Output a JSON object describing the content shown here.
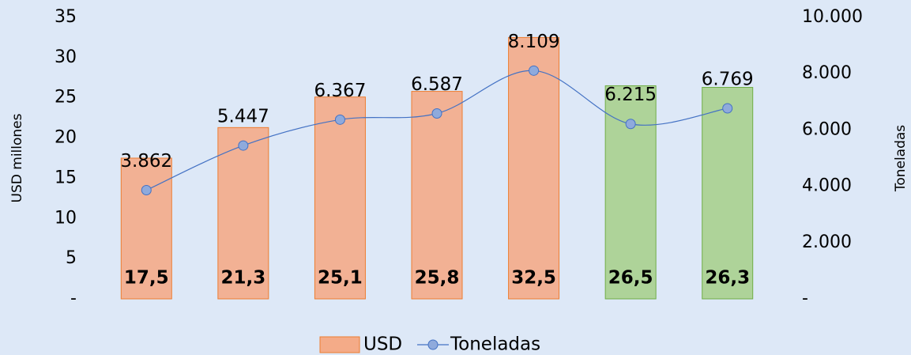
{
  "chart_data": {
    "type": "bar_line",
    "categories": [
      null,
      null,
      null,
      null,
      null,
      null,
      null
    ],
    "ylabel": "USD millones",
    "y2label": "Toneladas",
    "ylim": [
      0,
      35
    ],
    "yticks": [
      {
        "value": 0,
        "label": "-"
      },
      5,
      10,
      15,
      20,
      25,
      30,
      35
    ],
    "y2lim": [
      0,
      10000
    ],
    "y2ticks": [
      {
        "value": 0,
        "label": "-"
      },
      {
        "value": 2000,
        "label": "2.000"
      },
      {
        "value": 4000,
        "label": "4.000"
      },
      {
        "value": 6000,
        "label": "6.000"
      },
      {
        "value": 8000,
        "label": "8.000"
      },
      {
        "value": 10000,
        "label": "10.000"
      }
    ],
    "legend": "bottom",
    "series": [
      {
        "name": "USD",
        "type": "bar",
        "color": "#f4ab88",
        "colors": [
          "#f4ab88",
          "#f4ab88",
          "#f4ab88",
          "#f4ab88",
          "#f4ab88",
          "#a9d08e",
          "#a9d08e"
        ],
        "edge_colors": [
          "#ed7d31",
          "#ed7d31",
          "#ed7d31",
          "#ed7d31",
          "#ed7d31",
          "#70ad47",
          "#70ad47"
        ],
        "values": [
          17.5,
          21.3,
          25.1,
          25.8,
          32.5,
          26.5,
          26.3
        ],
        "value_labels": [
          "17,5",
          "21,3",
          "25,1",
          "25,8",
          "32,5",
          "26,5",
          "26,3"
        ]
      },
      {
        "name": "Toneladas",
        "type": "line",
        "axis": "y2",
        "color": "#4472c4",
        "marker_color": "#8faadc",
        "values": [
          3862,
          5447,
          6367,
          6587,
          8109,
          6215,
          6769
        ],
        "value_labels": [
          "3.862",
          "5.447",
          "6.367",
          "6.587",
          "8.109",
          "6.215",
          "6.769"
        ]
      }
    ]
  }
}
